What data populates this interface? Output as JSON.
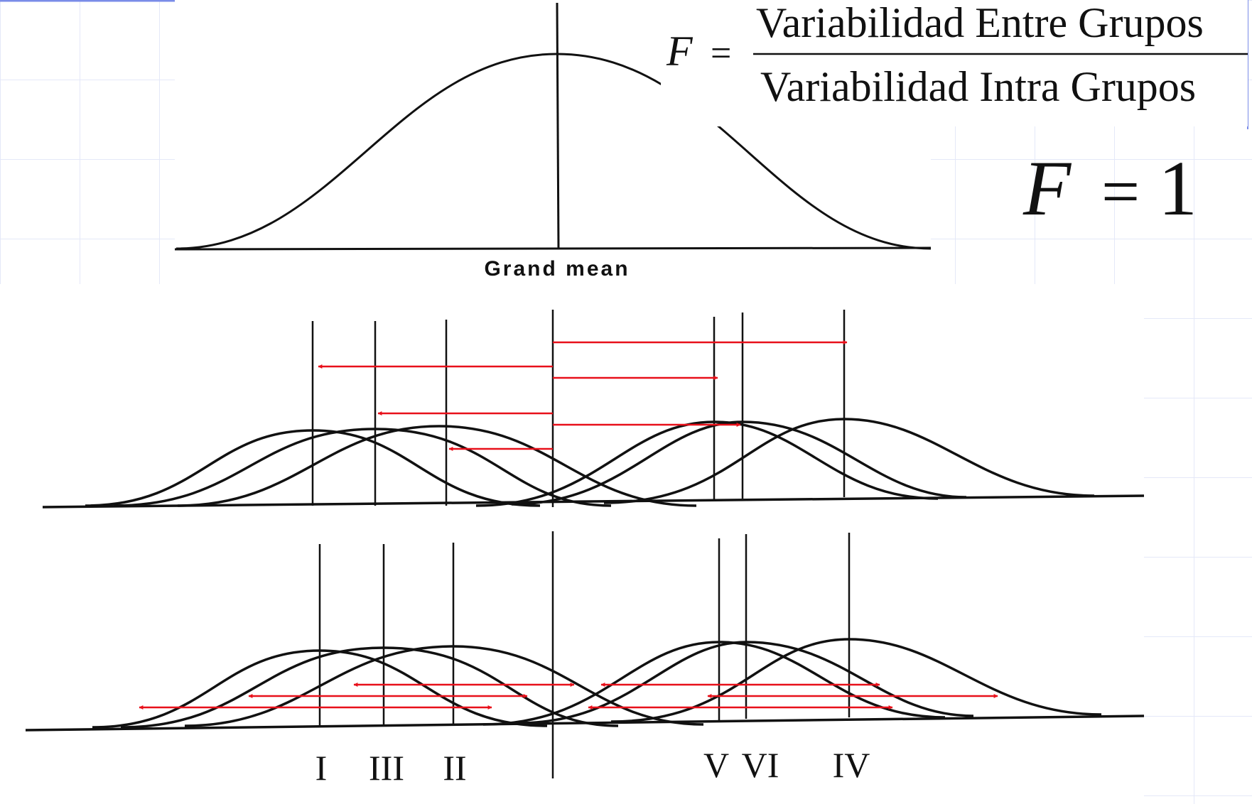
{
  "equation": {
    "lhs": "F",
    "equals": "=",
    "numerator": "Variabilidad Entre Grupos",
    "denominator": "Variabilidad Intra Grupos"
  },
  "result": {
    "lhs": "F",
    "equals": "=",
    "value": "1"
  },
  "grand_mean_label": "Grand mean",
  "group_labels": [
    "I",
    "III",
    "II",
    "V",
    "VI",
    "IV"
  ],
  "colors": {
    "curve": "#111111",
    "arrow": "#e8101a",
    "grid": "#e4e8f8"
  }
}
